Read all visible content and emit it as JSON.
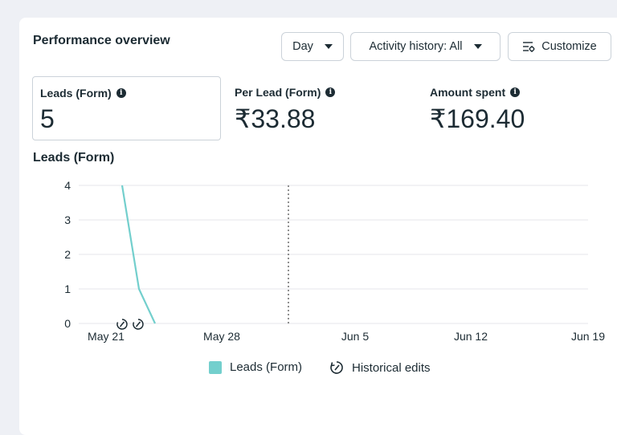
{
  "header": {
    "title": "Performance overview"
  },
  "controls": {
    "day_label": "Day",
    "activity_label": "Activity history: All",
    "customize_label": "Customize"
  },
  "metrics": [
    {
      "label": "Leads (Form)",
      "value": "5"
    },
    {
      "label": "Per Lead (Form)",
      "value": "₹33.88"
    },
    {
      "label": "Amount spent",
      "value": "₹169.40"
    }
  ],
  "chart_title": "Leads (Form)",
  "colors": {
    "series": "#73cfcd",
    "text": "#1c2b33",
    "grid": "#e4e6eb"
  },
  "chart_data": {
    "type": "line",
    "xlabel": "",
    "ylabel": "",
    "ylim": [
      0,
      4
    ],
    "y_ticks": [
      0,
      1,
      2,
      3,
      4
    ],
    "x_ticks": [
      "May 21",
      "May 28",
      "Jun 5",
      "Jun 12",
      "Jun 19"
    ],
    "series": [
      {
        "name": "Leads (Form)",
        "x": [
          "May 21",
          "May 22",
          "May 23"
        ],
        "y": [
          4,
          1,
          0
        ]
      }
    ],
    "annotations": [
      {
        "type": "historical-edit",
        "x": "May 21"
      },
      {
        "type": "historical-edit",
        "x": "May 22"
      }
    ],
    "legend": [
      "Leads (Form)",
      "Historical edits"
    ],
    "legend_position": "bottom",
    "grid": true
  }
}
